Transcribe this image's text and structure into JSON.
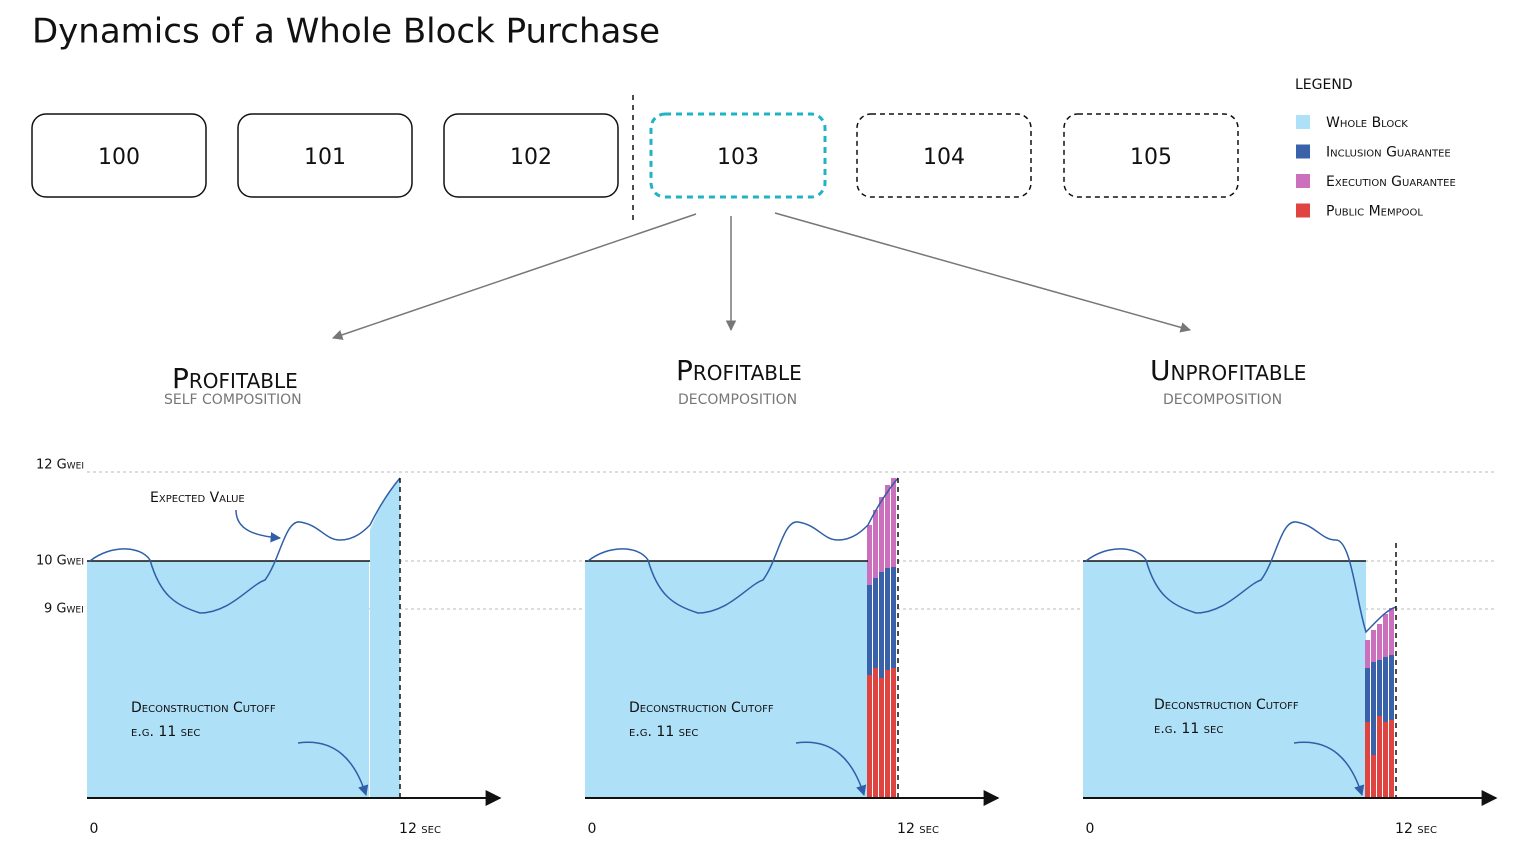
{
  "header": {
    "title": "Dynamics of a Whole Block Purchase"
  },
  "blocks": [
    "100",
    "101",
    "102",
    "103",
    "104",
    "105"
  ],
  "legend": {
    "title": "LEGEND",
    "items": [
      "Whole Block",
      "Inclusion Guarantee",
      "Execution Guarantee",
      "Public Mempool"
    ]
  },
  "axis_labels": [
    "12 Gwei",
    "10 Gwei",
    "9 Gwei"
  ],
  "annotation": "Expected Value",
  "panels": [
    {
      "title": "Profitable",
      "subtitle": "SELF COMPOSITION",
      "x_start": "0",
      "x_end": "12 sec",
      "cutoff": "Deconstruction Cutoff",
      "cutoff_example": "e.g. 11 sec"
    },
    {
      "title": "Profitable",
      "subtitle": "DECOMPOSITION",
      "x_start": "0",
      "x_end": "12 sec",
      "cutoff": "Deconstruction Cutoff",
      "cutoff_example": "e.g. 11 sec"
    },
    {
      "title": "Unprofitable",
      "subtitle": "DECOMPOSITION",
      "x_start": "0",
      "x_end": "12 sec",
      "cutoff": "Deconstruction Cutoff",
      "cutoff_example": "e.g. 11 sec"
    }
  ]
}
